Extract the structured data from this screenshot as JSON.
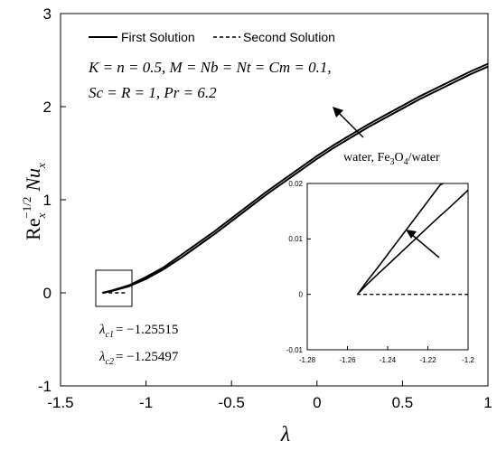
{
  "chart_data": {
    "type": "line",
    "main": {
      "xlabel": "λ",
      "ylabel_parts": {
        "re": "Re",
        "sub": "x",
        "sup": "−1/2",
        "nu": "Nu",
        "nu_sub": "x"
      },
      "xlim": [
        -1.5,
        1
      ],
      "ylim": [
        -1,
        3
      ],
      "xticks": [
        "-1.5",
        "-1",
        "-0.5",
        "0",
        "0.5",
        "1"
      ],
      "yticks": [
        "-1",
        "0",
        "1",
        "2",
        "3"
      ],
      "grid": false,
      "legend": {
        "placement": "top-left",
        "entries": [
          {
            "label": "First Solution",
            "style": "solid"
          },
          {
            "label": "Second Solution",
            "style": "dashed"
          }
        ]
      },
      "params_line1": "K = n = 0.5, M = Nb = Nt = Cm = 0.1,",
      "params_line2": "Sc = R = 1, Pr = 6.2",
      "annotation": {
        "prefix": "water, Fe",
        "sub1": "3",
        "mid": "O",
        "sub2": "4",
        "suffix": "/water"
      },
      "critical": [
        {
          "symbol": "λ",
          "sub": "c1",
          "value": "= −1.25515"
        },
        {
          "symbol": "λ",
          "sub": "c2",
          "value": "= −1.25497"
        }
      ],
      "series": [
        {
          "style": "solid",
          "points": [
            [
              -1.2552,
              0.0
            ],
            [
              -1.2,
              0.02
            ],
            [
              -1.1,
              0.07
            ],
            [
              -1.0,
              0.15
            ],
            [
              -0.9,
              0.25
            ],
            [
              -0.8,
              0.37
            ],
            [
              -0.7,
              0.5
            ],
            [
              -0.6,
              0.63
            ],
            [
              -0.5,
              0.77
            ],
            [
              -0.4,
              0.91
            ],
            [
              -0.3,
              1.05
            ],
            [
              -0.2,
              1.18
            ],
            [
              -0.1,
              1.31
            ],
            [
              0.0,
              1.44
            ],
            [
              0.1,
              1.56
            ],
            [
              0.2,
              1.67
            ],
            [
              0.3,
              1.78
            ],
            [
              0.4,
              1.88
            ],
            [
              0.5,
              1.98
            ],
            [
              0.6,
              2.08
            ],
            [
              0.7,
              2.17
            ],
            [
              0.8,
              2.26
            ],
            [
              0.9,
              2.35
            ],
            [
              1.0,
              2.43
            ]
          ]
        },
        {
          "style": "solid",
          "points": [
            [
              -1.255,
              0.0
            ],
            [
              -1.2,
              0.025
            ],
            [
              -1.1,
              0.08
            ],
            [
              -1.0,
              0.17
            ],
            [
              -0.9,
              0.27
            ],
            [
              -0.8,
              0.4
            ],
            [
              -0.7,
              0.53
            ],
            [
              -0.6,
              0.66
            ],
            [
              -0.5,
              0.8
            ],
            [
              -0.4,
              0.94
            ],
            [
              -0.3,
              1.08
            ],
            [
              -0.2,
              1.21
            ],
            [
              -0.1,
              1.34
            ],
            [
              0.0,
              1.47
            ],
            [
              0.1,
              1.59
            ],
            [
              0.2,
              1.7
            ],
            [
              0.3,
              1.81
            ],
            [
              0.4,
              1.91
            ],
            [
              0.5,
              2.01
            ],
            [
              0.6,
              2.11
            ],
            [
              0.7,
              2.2
            ],
            [
              0.8,
              2.29
            ],
            [
              0.9,
              2.38
            ],
            [
              1.0,
              2.46
            ]
          ]
        },
        {
          "style": "dashed",
          "points": [
            [
              -1.2552,
              0.0
            ],
            [
              -1.12,
              0.0
            ]
          ]
        }
      ]
    },
    "inset": {
      "xlim": [
        -1.28,
        -1.2
      ],
      "ylim": [
        -0.01,
        0.02
      ],
      "xticks": [
        "-1.28",
        "-1.26",
        "-1.24",
        "-1.22",
        "-1.2"
      ],
      "yticks": [
        "-0.01",
        "0",
        "0.01",
        "0.02"
      ],
      "series": [
        {
          "style": "solid",
          "points": [
            [
              -1.25515,
              0.0
            ],
            [
              -1.254,
              0.0004
            ],
            [
              -1.25,
              0.0019
            ],
            [
              -1.245,
              0.0036
            ],
            [
              -1.24,
              0.0053
            ],
            [
              -1.235,
              0.007
            ],
            [
              -1.23,
              0.0087
            ],
            [
              -1.225,
              0.0104
            ],
            [
              -1.22,
              0.0121
            ],
            [
              -1.215,
              0.0138
            ],
            [
              -1.21,
              0.0154
            ],
            [
              -1.205,
              0.0171
            ],
            [
              -1.2,
              0.0188
            ]
          ]
        },
        {
          "style": "solid",
          "points": [
            [
              -1.25497,
              0.0
            ],
            [
              -1.254,
              0.0005
            ],
            [
              -1.25,
              0.0025
            ],
            [
              -1.245,
              0.0048
            ],
            [
              -1.24,
              0.0072
            ],
            [
              -1.235,
              0.0096
            ],
            [
              -1.23,
              0.012
            ],
            [
              -1.225,
              0.0144
            ],
            [
              -1.22,
              0.0168
            ],
            [
              -1.215,
              0.0192
            ],
            [
              -1.214,
              0.0197
            ],
            [
              -1.2125,
              0.02
            ]
          ]
        },
        {
          "style": "dashed",
          "points": [
            [
              -1.2552,
              0.0
            ],
            [
              -1.2,
              0.0
            ]
          ]
        }
      ]
    }
  }
}
